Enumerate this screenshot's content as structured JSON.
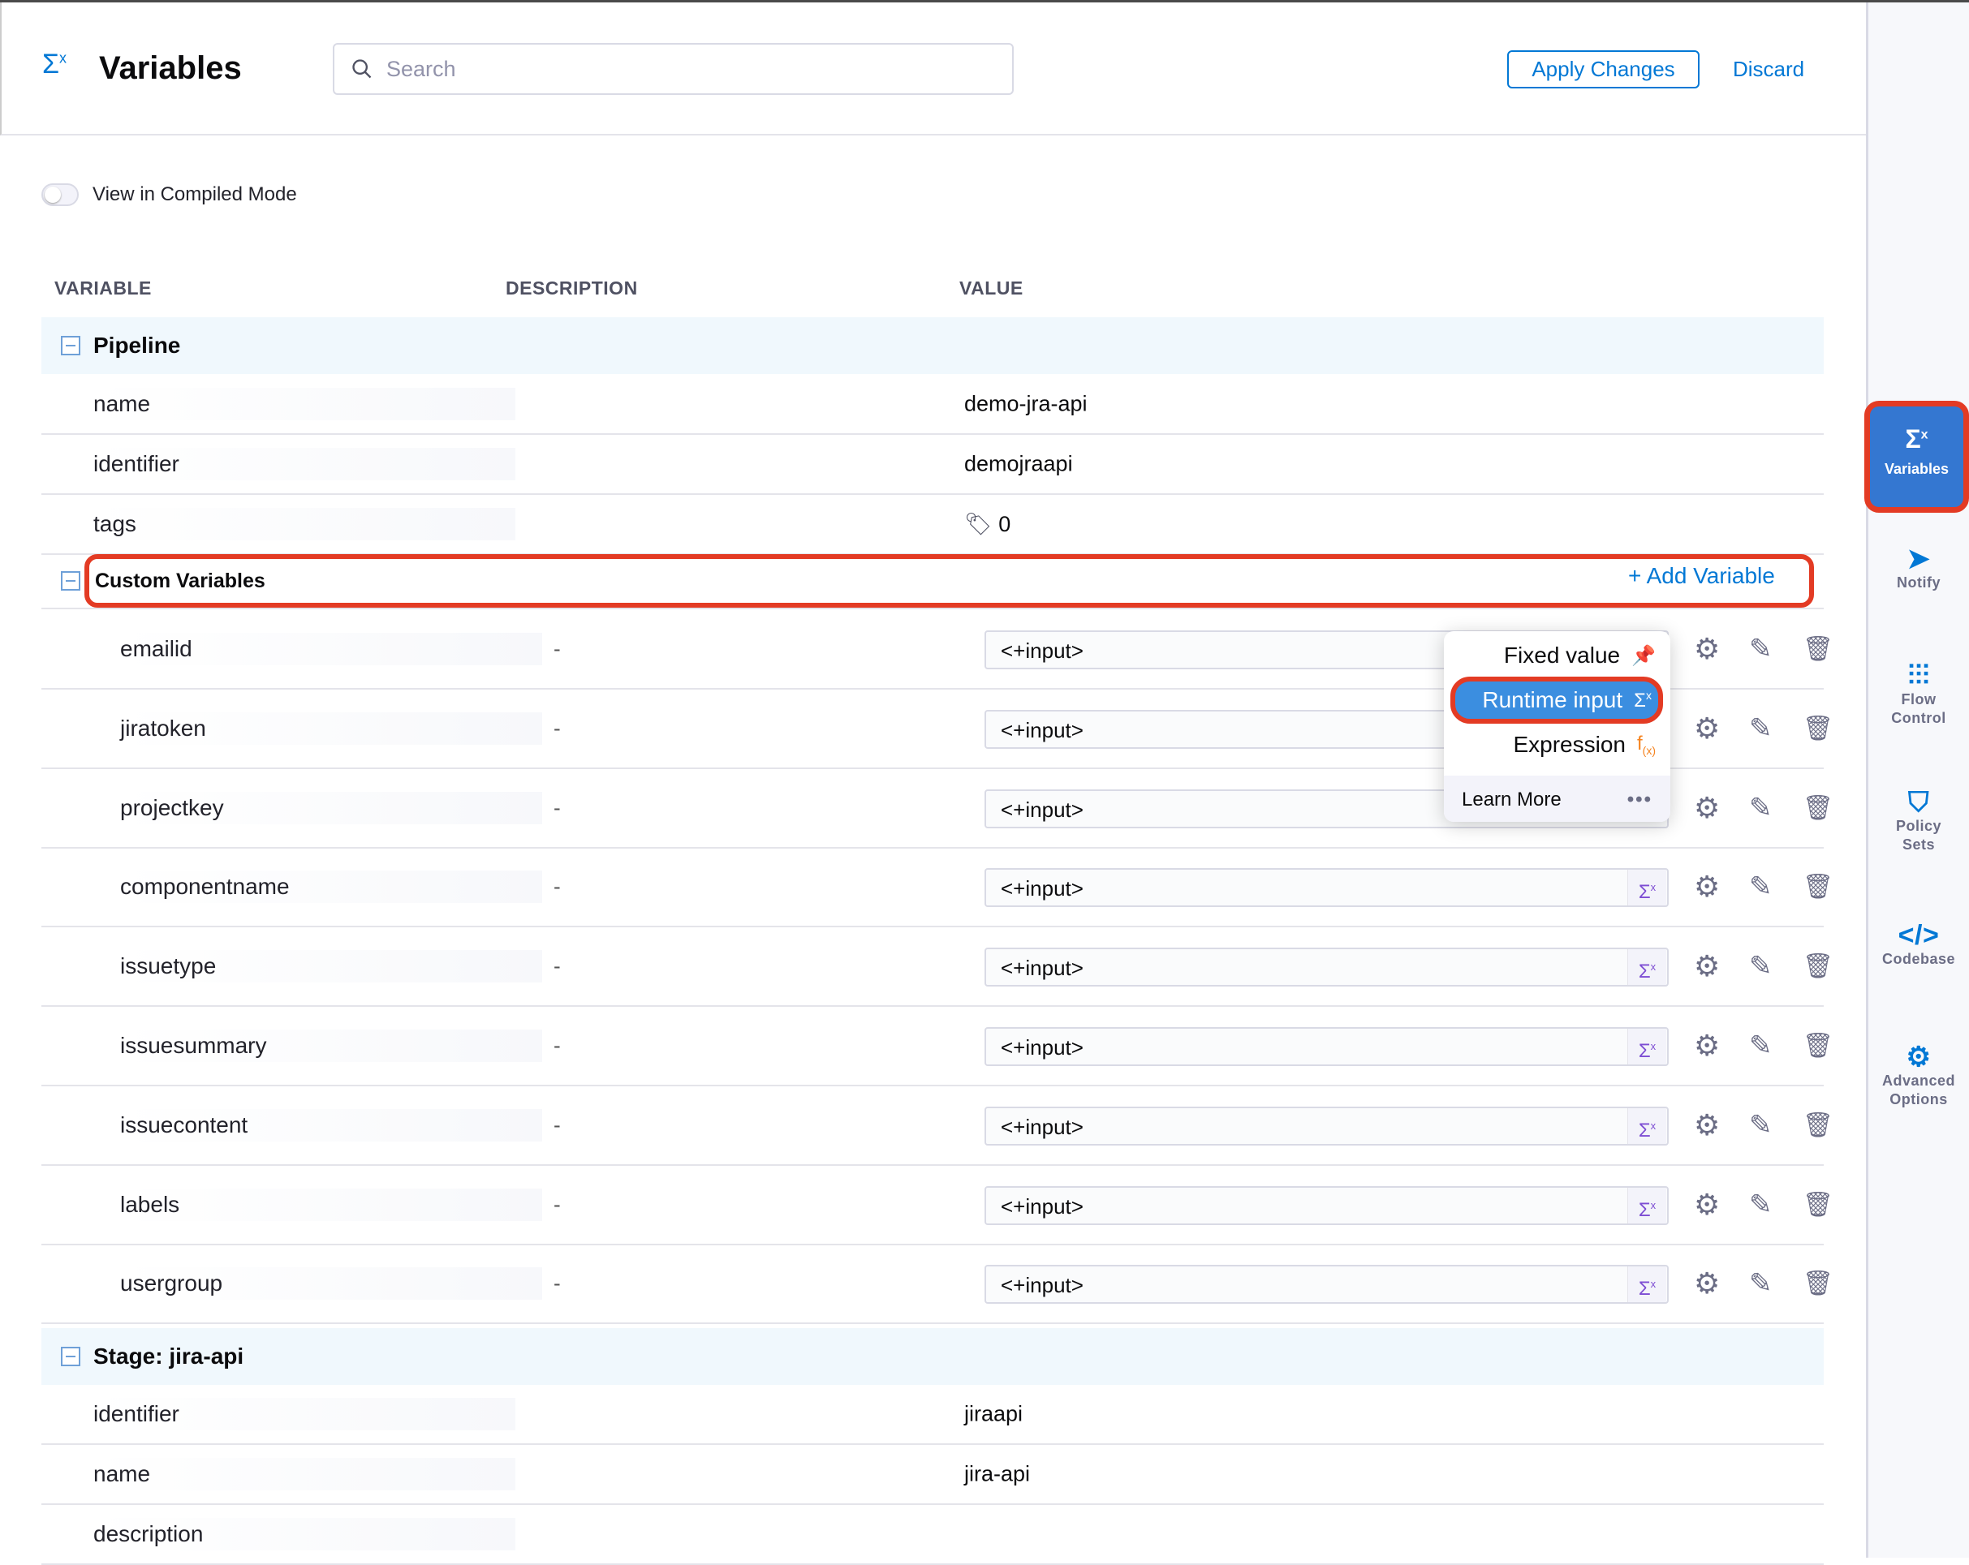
{
  "header": {
    "title": "Variables",
    "title_icon": "sigma-x-icon",
    "search_placeholder": "Search",
    "apply_label": "Apply Changes",
    "discard_label": "Discard"
  },
  "toggle": {
    "label": "View in Compiled Mode",
    "on": false
  },
  "columns": {
    "variable": "VARIABLE",
    "description": "DESCRIPTION",
    "value": "VALUE"
  },
  "pipeline": {
    "title": "Pipeline",
    "rows": [
      {
        "name": "name",
        "value": "demo-jra-api"
      },
      {
        "name": "identifier",
        "value": "demojraapi"
      },
      {
        "name": "tags",
        "value": "0"
      }
    ]
  },
  "custom": {
    "title": "Custom Variables",
    "add_label": "+ Add Variable",
    "vars": [
      {
        "name": "emailid",
        "desc": "-",
        "value": "<+input>"
      },
      {
        "name": "jiratoken",
        "desc": "-",
        "value": "<+input>"
      },
      {
        "name": "projectkey",
        "desc": "-",
        "value": "<+input>"
      },
      {
        "name": "componentname",
        "desc": "-",
        "value": "<+input>"
      },
      {
        "name": "issuetype",
        "desc": "-",
        "value": "<+input>"
      },
      {
        "name": "issuesummary",
        "desc": "-",
        "value": "<+input>"
      },
      {
        "name": "issuecontent",
        "desc": "-",
        "value": "<+input>"
      },
      {
        "name": "labels",
        "desc": "-",
        "value": "<+input>"
      },
      {
        "name": "usergroup",
        "desc": "-",
        "value": "<+input>"
      }
    ]
  },
  "menu": {
    "fixed": "Fixed value",
    "runtime": "Runtime input",
    "expression": "Expression",
    "learn_more": "Learn More"
  },
  "stage": {
    "title": "Stage: jira-api",
    "rows": [
      {
        "name": "identifier",
        "value": "jiraapi"
      },
      {
        "name": "name",
        "value": "jira-api"
      },
      {
        "name": "description",
        "value": ""
      }
    ]
  },
  "sidebar": {
    "items": [
      {
        "label": "Variables",
        "active": true
      },
      {
        "label": "Notify"
      },
      {
        "label": "Flow Control"
      },
      {
        "label": "Policy Sets"
      },
      {
        "label": "Codebase"
      },
      {
        "label": "Advanced Options"
      }
    ]
  },
  "colors": {
    "accent": "#0278d5",
    "highlight": "#e33b24",
    "runtime": "#7d4dd3",
    "expression": "#f5831f"
  }
}
